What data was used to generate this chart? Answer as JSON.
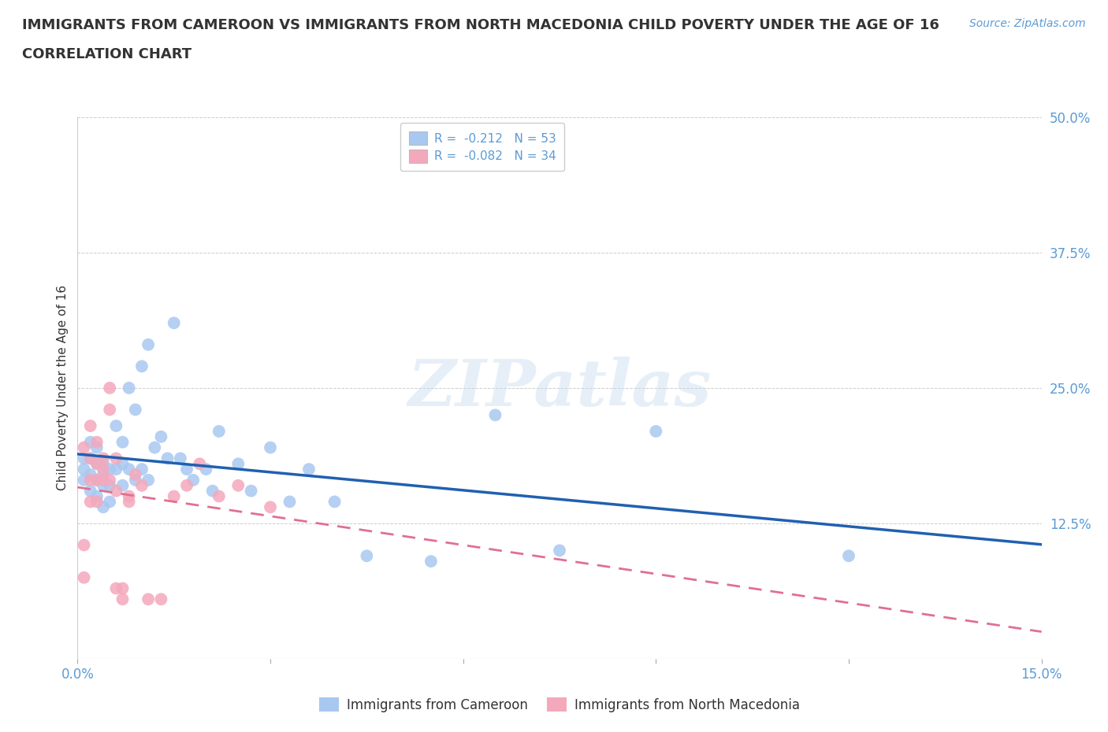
{
  "title": "IMMIGRANTS FROM CAMEROON VS IMMIGRANTS FROM NORTH MACEDONIA CHILD POVERTY UNDER THE AGE OF 16",
  "subtitle": "CORRELATION CHART",
  "source": "Source: ZipAtlas.com",
  "xlabel_cameroon": "Immigrants from Cameroon",
  "xlabel_macedonia": "Immigrants from North Macedonia",
  "ylabel": "Child Poverty Under the Age of 16",
  "watermark": "ZIPatlas",
  "xlim": [
    0.0,
    0.15
  ],
  "ylim": [
    0.0,
    0.5
  ],
  "xtick_positions": [
    0.0,
    0.03,
    0.06,
    0.09,
    0.12,
    0.15
  ],
  "xticklabels": [
    "0.0%",
    "",
    "",
    "",
    "",
    "15.0%"
  ],
  "ytick_positions": [
    0.0,
    0.125,
    0.25,
    0.375,
    0.5
  ],
  "yticklabels": [
    "",
    "12.5%",
    "25.0%",
    "37.5%",
    "50.0%"
  ],
  "r_cameroon": -0.212,
  "n_cameroon": 53,
  "r_macedonia": -0.082,
  "n_macedonia": 34,
  "color_cameroon": "#A8C8F0",
  "color_macedonia": "#F4A8BC",
  "line_color_cameroon": "#2060B0",
  "line_color_macedonia": "#E07090",
  "scatter_cameroon_x": [
    0.001,
    0.001,
    0.001,
    0.002,
    0.002,
    0.002,
    0.002,
    0.003,
    0.003,
    0.003,
    0.003,
    0.004,
    0.004,
    0.004,
    0.004,
    0.005,
    0.005,
    0.005,
    0.006,
    0.006,
    0.007,
    0.007,
    0.007,
    0.008,
    0.008,
    0.009,
    0.009,
    0.01,
    0.01,
    0.011,
    0.011,
    0.012,
    0.013,
    0.014,
    0.015,
    0.016,
    0.017,
    0.018,
    0.02,
    0.021,
    0.022,
    0.025,
    0.027,
    0.03,
    0.033,
    0.036,
    0.04,
    0.045,
    0.055,
    0.065,
    0.075,
    0.09,
    0.12
  ],
  "scatter_cameroon_y": [
    0.185,
    0.175,
    0.165,
    0.2,
    0.185,
    0.17,
    0.155,
    0.195,
    0.18,
    0.165,
    0.15,
    0.18,
    0.17,
    0.16,
    0.14,
    0.175,
    0.16,
    0.145,
    0.215,
    0.175,
    0.2,
    0.18,
    0.16,
    0.25,
    0.175,
    0.23,
    0.165,
    0.27,
    0.175,
    0.29,
    0.165,
    0.195,
    0.205,
    0.185,
    0.31,
    0.185,
    0.175,
    0.165,
    0.175,
    0.155,
    0.21,
    0.18,
    0.155,
    0.195,
    0.145,
    0.175,
    0.145,
    0.095,
    0.09,
    0.225,
    0.1,
    0.21,
    0.095
  ],
  "scatter_macedonia_x": [
    0.001,
    0.001,
    0.001,
    0.002,
    0.002,
    0.002,
    0.002,
    0.003,
    0.003,
    0.003,
    0.003,
    0.004,
    0.004,
    0.004,
    0.005,
    0.005,
    0.005,
    0.006,
    0.006,
    0.006,
    0.007,
    0.007,
    0.008,
    0.008,
    0.009,
    0.01,
    0.011,
    0.013,
    0.015,
    0.017,
    0.019,
    0.022,
    0.025,
    0.03
  ],
  "scatter_macedonia_y": [
    0.195,
    0.105,
    0.075,
    0.215,
    0.185,
    0.165,
    0.145,
    0.2,
    0.18,
    0.165,
    0.145,
    0.175,
    0.165,
    0.185,
    0.23,
    0.25,
    0.165,
    0.155,
    0.185,
    0.065,
    0.065,
    0.055,
    0.145,
    0.15,
    0.17,
    0.16,
    0.055,
    0.055,
    0.15,
    0.16,
    0.18,
    0.15,
    0.16,
    0.14
  ],
  "title_color": "#333333",
  "axis_color": "#5B9BD5",
  "grid_color": "#CCCCCC",
  "background_color": "#FFFFFF",
  "watermark_color": "#C8DCF0",
  "watermark_alpha": 0.45,
  "title_fontsize": 13,
  "subtitle_fontsize": 13
}
